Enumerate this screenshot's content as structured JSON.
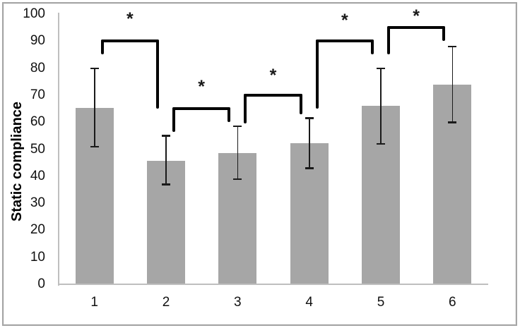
{
  "figure": {
    "background": "#ffffff",
    "frame_color": "#a6a6a6"
  },
  "chart_data": {
    "type": "bar",
    "title": "",
    "xlabel": "",
    "ylabel": "Static compliance",
    "categories": [
      "1",
      "2",
      "3",
      "4",
      "5",
      "6"
    ],
    "values": [
      65.3,
      45.7,
      48.6,
      52.2,
      66.1,
      73.8
    ],
    "error_high": [
      80,
      55,
      58.5,
      61.5,
      80,
      88
    ],
    "error_low": [
      51,
      37,
      39,
      43,
      52,
      60
    ],
    "ylim": [
      0,
      100
    ],
    "yticks": [
      "0",
      "10",
      "20",
      "30",
      "40",
      "50",
      "60",
      "70",
      "80",
      "90",
      "100"
    ],
    "grid": "off",
    "legend": "none",
    "bar_color": "#a6a6a6",
    "axis_color": "#bfbfbf",
    "error_color": "#1a1a1a",
    "bracket_color": "#000000",
    "significance_brackets": [
      {
        "between": [
          "1",
          "2"
        ],
        "y": 90,
        "left_end": 85,
        "right_end": 65,
        "label": "*",
        "label_y": 99
      },
      {
        "between": [
          "2",
          "3"
        ],
        "y": 65,
        "left_end": 56.5,
        "right_end": 60,
        "label": "*",
        "label_y": 74
      },
      {
        "between": [
          "3",
          "4"
        ],
        "y": 70,
        "left_end": 59.5,
        "right_end": 63,
        "label": "*",
        "label_y": 78
      },
      {
        "between": [
          "4",
          "5"
        ],
        "y": 90,
        "left_end": 65,
        "right_end": 85,
        "label": "*",
        "label_y": 98.5
      },
      {
        "between": [
          "5",
          "6"
        ],
        "y": 95,
        "left_end": 85,
        "right_end": 90,
        "label": "*",
        "label_y": 100
      }
    ]
  }
}
